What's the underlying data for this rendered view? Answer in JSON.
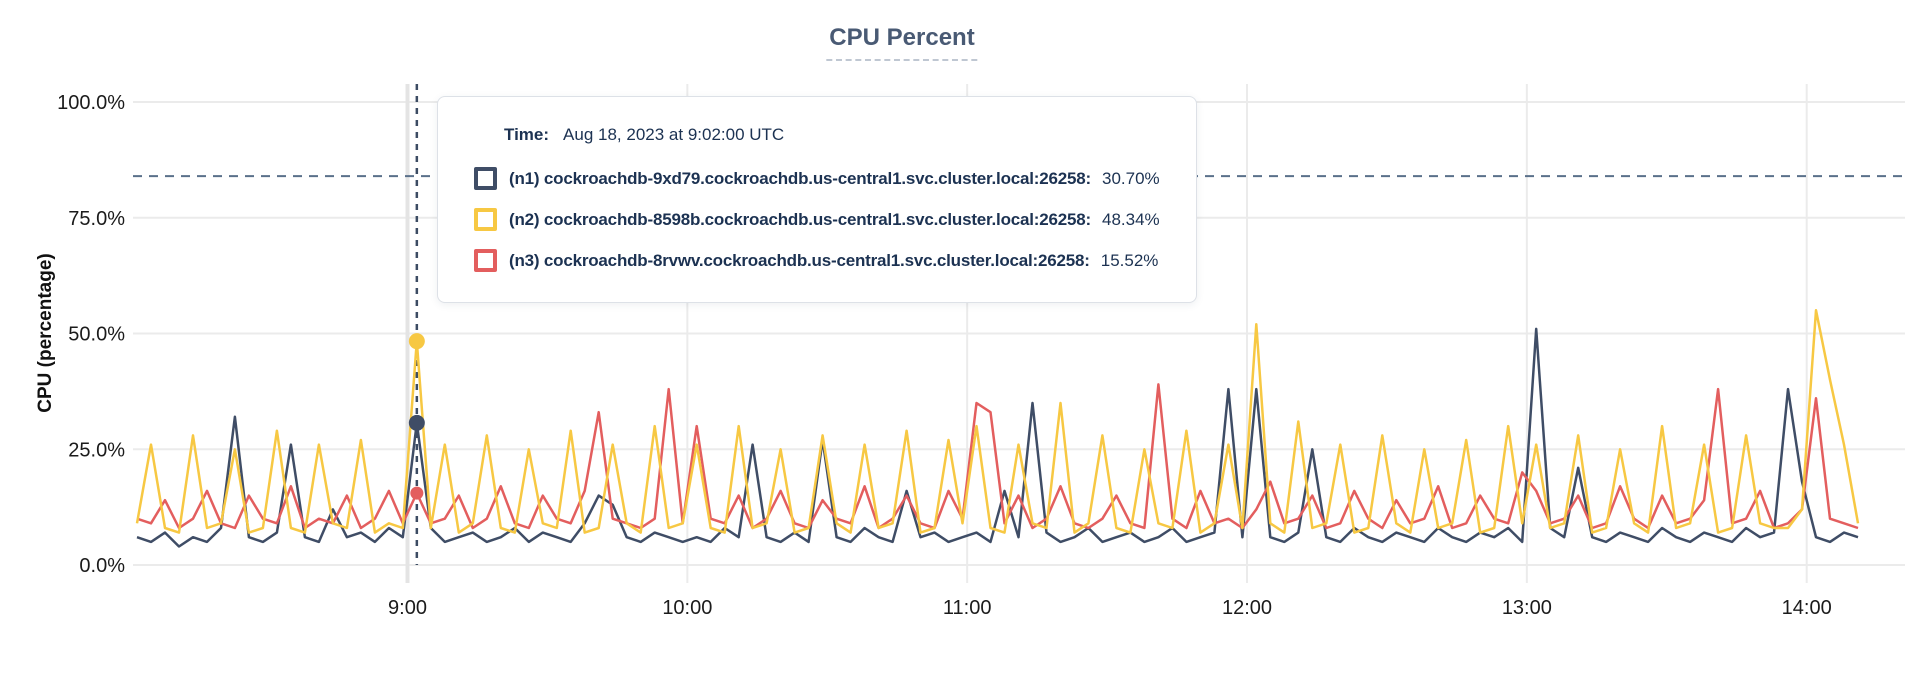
{
  "tooltip": {
    "time_label": "Time:",
    "time_value": "Aug 18, 2023 at 9:02:00 UTC",
    "rows": [
      {
        "label": "(n1) cockroachdb-9xd79.cockroachdb.us-central1.svc.cluster.local:26258:",
        "value": "30.70%"
      },
      {
        "label": "(n2) cockroachdb-8598b.cockroachdb.us-central1.svc.cluster.local:26258:",
        "value": "48.34%"
      },
      {
        "label": "(n3) cockroachdb-8rvwv.cockroachdb.us-central1.svc.cluster.local:26258:",
        "value": "15.52%"
      }
    ]
  },
  "colors": {
    "n1_line": "#3f4d66",
    "n2_line": "#f7c843",
    "n3_line": "#e35e5e",
    "title_text": "#495a74",
    "tooltip_text": "#1c3252",
    "gridline": "#ebebeb",
    "threshold_dash": "#5a708a",
    "hover_dash": "#3c4c63"
  },
  "chart_data": {
    "type": "line",
    "title": "CPU Percent",
    "ylabel": "CPU (percentage)",
    "ylim": [
      0,
      100
    ],
    "grid": true,
    "yticks": [
      {
        "v": 100,
        "label": "100.0%"
      },
      {
        "v": 75,
        "label": "75.0%"
      },
      {
        "v": 50,
        "label": "50.0%"
      },
      {
        "v": 25,
        "label": "25.0%"
      },
      {
        "v": 0,
        "label": "0.0%"
      }
    ],
    "xticks": [
      {
        "t": 540,
        "label": "9:00"
      },
      {
        "t": 600,
        "label": "10:00"
      },
      {
        "t": 660,
        "label": "11:00"
      },
      {
        "t": 720,
        "label": "12:00"
      },
      {
        "t": 780,
        "label": "13:00"
      },
      {
        "t": 840,
        "label": "14:00"
      }
    ],
    "x_start_minute": 482,
    "x_step_minutes": 3,
    "threshold_value": 84,
    "hover_time_minute": 542,
    "series": [
      {
        "name": "(n1) cockroachdb-9xd79.cockroachdb.us-central1.svc.cluster.local:26258",
        "color": "#3f4d66",
        "hover_value": 30.7,
        "values": [
          6,
          5,
          7,
          4,
          6,
          5,
          8,
          32,
          6,
          5,
          7,
          26,
          6,
          5,
          12,
          6,
          7,
          5,
          8,
          6,
          30.7,
          8,
          5,
          6,
          7,
          5,
          6,
          8,
          5,
          7,
          6,
          5,
          9,
          15,
          13,
          6,
          5,
          7,
          6,
          5,
          6,
          5,
          8,
          6,
          26,
          6,
          5,
          7,
          5,
          27,
          6,
          5,
          8,
          6,
          5,
          16,
          6,
          7,
          5,
          6,
          7,
          5,
          16,
          6,
          35,
          7,
          5,
          6,
          8,
          5,
          6,
          7,
          5,
          6,
          8,
          5,
          6,
          7,
          38,
          6,
          38,
          6,
          5,
          7,
          25,
          6,
          5,
          8,
          6,
          5,
          7,
          6,
          5,
          8,
          6,
          5,
          7,
          6,
          8,
          5,
          51,
          8,
          6,
          21,
          6,
          5,
          7,
          6,
          5,
          8,
          6,
          5,
          7,
          6,
          5,
          8,
          6,
          7,
          38,
          18,
          6,
          5,
          7,
          6
        ]
      },
      {
        "name": "(n2) cockroachdb-8598b.cockroachdb.us-central1.svc.cluster.local:26258",
        "color": "#f7c843",
        "hover_value": 48.34,
        "values": [
          9,
          26,
          8,
          7,
          28,
          8,
          9,
          25,
          7,
          8,
          29,
          8,
          7,
          26,
          9,
          8,
          27,
          7,
          9,
          8,
          48.34,
          8,
          26,
          7,
          9,
          28,
          8,
          7,
          25,
          9,
          8,
          29,
          7,
          8,
          26,
          9,
          7,
          30,
          8,
          9,
          26,
          8,
          7,
          30,
          8,
          9,
          25,
          7,
          8,
          28,
          9,
          7,
          26,
          8,
          9,
          29,
          7,
          8,
          27,
          9,
          30,
          8,
          7,
          26,
          9,
          8,
          35,
          7,
          9,
          28,
          8,
          7,
          25,
          9,
          8,
          29,
          7,
          9,
          26,
          8,
          52,
          9,
          7,
          31,
          8,
          9,
          26,
          7,
          8,
          28,
          9,
          7,
          25,
          8,
          9,
          27,
          7,
          8,
          30,
          9,
          26,
          8,
          9,
          28,
          7,
          8,
          25,
          9,
          7,
          30,
          8,
          9,
          26,
          7,
          8,
          28,
          9,
          8,
          8,
          12,
          55,
          40,
          26,
          9
        ]
      },
      {
        "name": "(n3) cockroachdb-8rvwv.cockroachdb.us-central1.svc.cluster.local:26258",
        "color": "#e35e5e",
        "hover_value": 15.52,
        "values": [
          10,
          9,
          14,
          8,
          10,
          16,
          9,
          8,
          15,
          10,
          9,
          17,
          8,
          10,
          9,
          15,
          8,
          10,
          16,
          9,
          15.52,
          9,
          10,
          15,
          8,
          10,
          17,
          9,
          8,
          15,
          10,
          9,
          16,
          33,
          10,
          9,
          8,
          10,
          38,
          9,
          30,
          10,
          9,
          15,
          8,
          10,
          16,
          9,
          8,
          14,
          10,
          9,
          17,
          8,
          10,
          15,
          9,
          8,
          16,
          10,
          35,
          33,
          9,
          15,
          8,
          10,
          17,
          9,
          8,
          10,
          15,
          9,
          8,
          39,
          10,
          8,
          16,
          9,
          10,
          8,
          12,
          18,
          9,
          10,
          15,
          8,
          9,
          16,
          10,
          8,
          14,
          9,
          10,
          17,
          8,
          9,
          15,
          10,
          9,
          20,
          16,
          9,
          10,
          15,
          8,
          9,
          17,
          10,
          8,
          15,
          9,
          10,
          14,
          38,
          9,
          10,
          16,
          8,
          9,
          12,
          36,
          10,
          9,
          8
        ]
      }
    ]
  }
}
